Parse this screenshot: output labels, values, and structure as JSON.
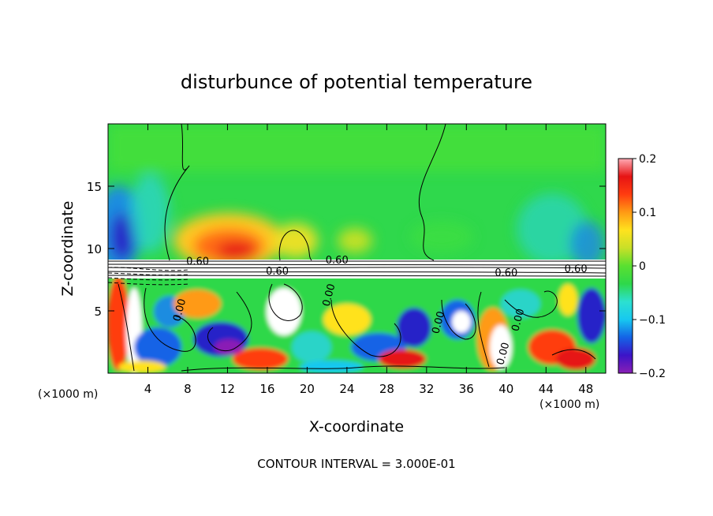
{
  "chart_data": {
    "type": "heatmap",
    "title": "disturbunce of potential temperature",
    "xlabel": "X-coordinate",
    "ylabel": "Z-coordinate",
    "x_unit": "(×1000 m)",
    "x_unit_right": "(×1000 m)",
    "xlim": [
      0,
      50
    ],
    "ylim": [
      0,
      20
    ],
    "x_ticks": [
      4,
      8,
      12,
      16,
      20,
      24,
      28,
      32,
      36,
      40,
      44,
      48
    ],
    "y_ticks": [
      5,
      10,
      15
    ],
    "footer": "CONTOUR INTERVAL = 3.000E-01",
    "colorbar": {
      "min": -0.2,
      "max": 0.2,
      "ticks": [
        0.2,
        0.1,
        0,
        -0.1,
        -0.2
      ],
      "tick_labels": [
        "0.2",
        "0.1",
        "0",
        "−0.1",
        "−0.2"
      ],
      "colors": [
        "#8a1fb5",
        "#3c14c8",
        "#1463e6",
        "#17c8f0",
        "#2ce0d0",
        "#2ed84a",
        "#5ae030",
        "#c8e028",
        "#ffe21e",
        "#ff9a14",
        "#ff3c10",
        "#e61414",
        "#ffaab4"
      ]
    },
    "contour_labels": [
      {
        "text": "0.60",
        "x": 17.0,
        "z": 7.9
      },
      {
        "text": "0.60",
        "x": 9.0,
        "z": 8.7
      },
      {
        "text": "0.60",
        "x": 23.0,
        "z": 8.8
      },
      {
        "text": "0.60",
        "x": 40.0,
        "z": 7.8
      },
      {
        "text": "0.60",
        "x": 47.0,
        "z": 8.1
      },
      {
        "text": "0.00",
        "x": 7.5,
        "z": 5.0
      },
      {
        "text": "0.00",
        "x": 22.5,
        "z": 6.2
      },
      {
        "text": "0.00",
        "x": 33.5,
        "z": 4.0
      },
      {
        "text": "0.00",
        "x": 41.5,
        "z": 4.2
      },
      {
        "text": "0.00",
        "x": 40.0,
        "z": 1.5
      }
    ]
  }
}
